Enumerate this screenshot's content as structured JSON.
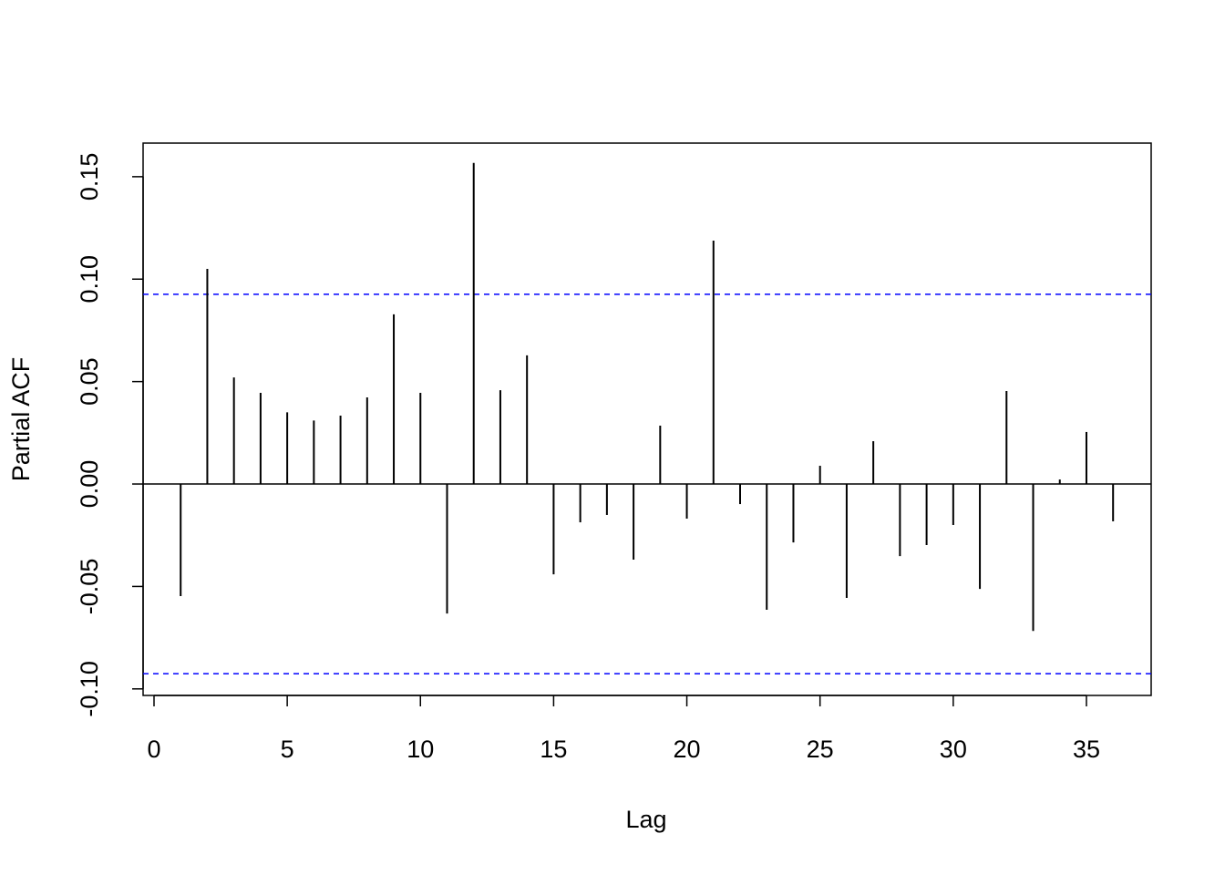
{
  "chart_data": {
    "type": "pacf",
    "x_label": "Lag",
    "y_label": "Partial ACF",
    "x": [
      1,
      2,
      3,
      4,
      5,
      6,
      7,
      8,
      9,
      10,
      11,
      12,
      13,
      14,
      15,
      16,
      17,
      18,
      19,
      20,
      21,
      22,
      23,
      24,
      25,
      26,
      27,
      28,
      29,
      30,
      31,
      32,
      33,
      34,
      35,
      36
    ],
    "values": [
      -0.0547,
      0.105,
      0.052,
      0.0445,
      0.035,
      0.031,
      0.0334,
      0.0423,
      0.0828,
      0.0445,
      -0.0632,
      0.1567,
      0.0458,
      0.0628,
      -0.0441,
      -0.0187,
      -0.0151,
      -0.0369,
      0.0285,
      -0.0169,
      0.1188,
      -0.0098,
      -0.0614,
      -0.0285,
      0.0089,
      -0.0556,
      0.0209,
      -0.0352,
      -0.0298,
      -0.02,
      -0.0512,
      0.0454,
      -0.0717,
      0.0022,
      0.0254,
      -0.0182
    ],
    "color": "#000000",
    "ci_lines": [
      0.0926,
      -0.0926
    ],
    "ci_color": "#0000ff",
    "xlim": [
      -0.41,
      37.43
    ],
    "ylim": [
      -0.1032,
      0.1664
    ],
    "xticks": [
      0,
      5,
      10,
      15,
      20,
      25,
      30,
      35
    ],
    "yticks": [
      {
        "value": -0.1,
        "label": "-0.10"
      },
      -0.05,
      {
        "value": 0,
        "label": "0.00"
      },
      0.05,
      {
        "value": 0.1,
        "label": "0.10"
      },
      0.15
    ]
  }
}
